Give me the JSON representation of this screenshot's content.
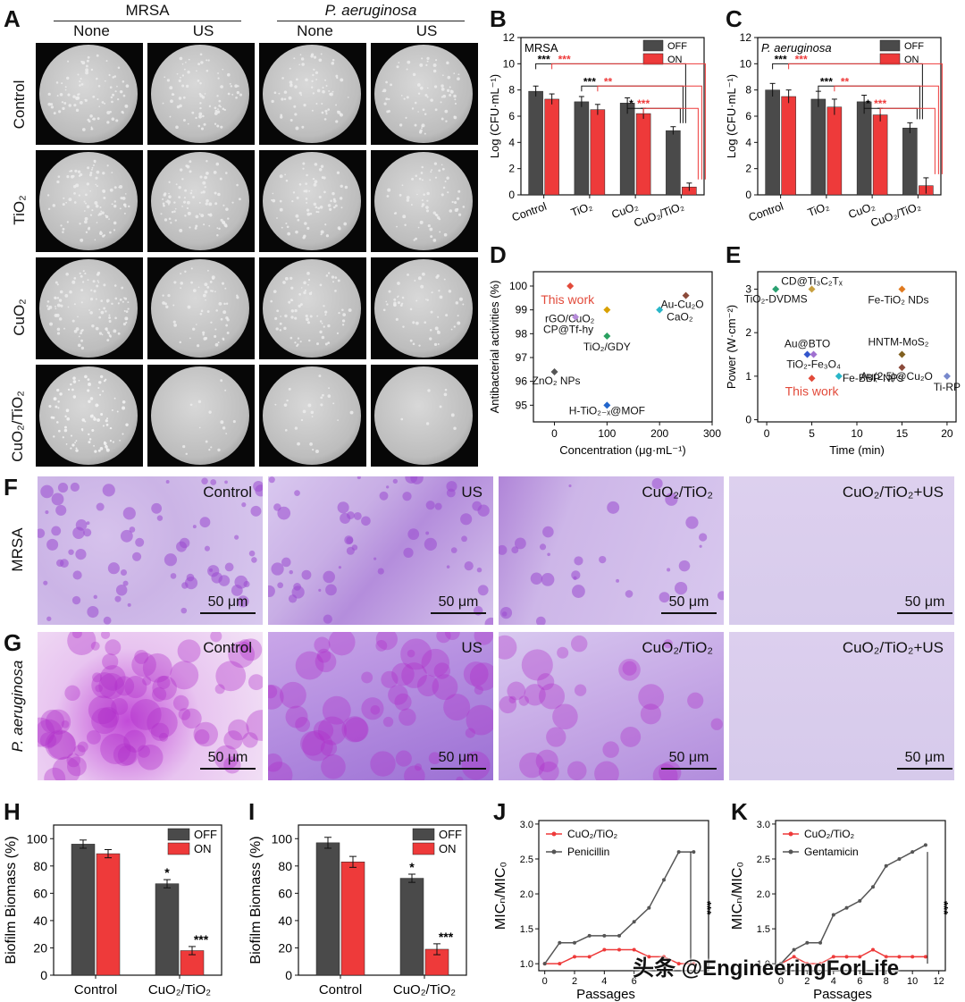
{
  "panelA": {
    "label": "A",
    "group_headers": [
      "MRSA",
      "P. aeruginosa"
    ],
    "col_headers": [
      "None",
      "US",
      "None",
      "US"
    ],
    "row_labels": [
      "Control",
      "TiO₂",
      "CuO₂",
      "CuO₂/TiO₂"
    ],
    "colonies": [
      [
        0.55,
        0.5,
        0.45,
        0.45
      ],
      [
        0.6,
        0.55,
        0.45,
        0.4
      ],
      [
        0.65,
        0.4,
        0.45,
        0.35
      ],
      [
        0.55,
        0.1,
        0.15,
        0.05
      ]
    ]
  },
  "panelB": {
    "label": "B",
    "chart_data": {
      "type": "bar",
      "inset_title": "MRSA",
      "categories": [
        "Control",
        "TiO₂",
        "CuO₂",
        "CuO₂/TiO₂"
      ],
      "series": [
        {
          "name": "OFF",
          "values": [
            7.9,
            7.1,
            7.0,
            4.9
          ]
        },
        {
          "name": "ON",
          "values": [
            7.3,
            6.5,
            6.2,
            0.6
          ]
        }
      ],
      "errors": [
        [
          0.4,
          0.4,
          0.4,
          0.3
        ],
        [
          0.4,
          0.4,
          0.4,
          0.3
        ]
      ],
      "ylabel": "Log (CFU·mL⁻¹)",
      "ylim": [
        0,
        12
      ],
      "yticks": [
        "0",
        "2",
        "4",
        "6",
        "8",
        "10",
        "12"
      ],
      "significance": [
        {
          "from": 0,
          "off": "***",
          "on": "***"
        },
        {
          "from": 1,
          "off": "***",
          "on": "**"
        },
        {
          "from": 2,
          "off": "*",
          "on": "***"
        }
      ],
      "legend": "top-right",
      "colors": {
        "OFF": "#4a4a4a",
        "ON": "#ee3a3a"
      }
    }
  },
  "panelC": {
    "label": "C",
    "chart_data": {
      "type": "bar",
      "inset_title": "P. aeruginosa",
      "categories": [
        "Control",
        "TiO₂",
        "CuO₂",
        "CuO₂/TiO₂"
      ],
      "series": [
        {
          "name": "OFF",
          "values": [
            8.0,
            7.3,
            7.1,
            5.1
          ]
        },
        {
          "name": "ON",
          "values": [
            7.5,
            6.7,
            6.1,
            0.7
          ]
        }
      ],
      "errors": [
        [
          0.5,
          0.6,
          0.5,
          0.4
        ],
        [
          0.5,
          0.6,
          0.5,
          0.6
        ]
      ],
      "ylabel": "Log (CFU·mL⁻¹)",
      "ylim": [
        0,
        12
      ],
      "yticks": [
        "0",
        "2",
        "4",
        "6",
        "8",
        "10",
        "12"
      ],
      "significance": [
        {
          "from": 0,
          "off": "***",
          "on": "***"
        },
        {
          "from": 1,
          "off": "***",
          "on": "**"
        },
        {
          "from": 2,
          "off": "*",
          "on": "***"
        }
      ],
      "legend": "top-right",
      "colors": {
        "OFF": "#4a4a4a",
        "ON": "#ee3a3a"
      }
    }
  },
  "panelD": {
    "label": "D",
    "chart_data": {
      "type": "scatter",
      "xlabel": "Concentration (μg·mL⁻¹)",
      "ylabel": "Antibacterial activities (%)",
      "xlim": [
        -40,
        300
      ],
      "ylim": [
        94.3,
        100.6
      ],
      "xticks": [
        0,
        100,
        200,
        300
      ],
      "yticks": [
        95,
        96,
        97,
        98,
        99,
        100
      ],
      "points": [
        {
          "label": "This work",
          "x": 30,
          "y": 100,
          "color": "#e24a3a",
          "highlight": true
        },
        {
          "label": "Au-Cu₂O",
          "x": 250,
          "y": 99.6,
          "color": "#8b4a3a"
        },
        {
          "label": "rGO/CuO₂",
          "x": 100,
          "y": 99.0,
          "color": "#d8a000"
        },
        {
          "label": "CaO₂",
          "x": 200,
          "y": 99.0,
          "color": "#29b6c8"
        },
        {
          "label": "CP@Tf-hy",
          "x": 40,
          "y": 98.7,
          "color": "#b58ad8"
        },
        {
          "label": "TiO₂/GDY",
          "x": 100,
          "y": 97.9,
          "color": "#2aa060"
        },
        {
          "label": "ZnO₂ NPs",
          "x": 0,
          "y": 96.4,
          "color": "#555555"
        },
        {
          "label": "H-TiO₂₋ₓ@MOF",
          "x": 100,
          "y": 95.0,
          "color": "#2266cc"
        }
      ]
    }
  },
  "panelE": {
    "label": "E",
    "chart_data": {
      "type": "scatter",
      "xlabel": "Time (min)",
      "ylabel": "Power (W·cm⁻²)",
      "xlim": [
        -1,
        21
      ],
      "ylim": [
        -0.05,
        3.4
      ],
      "xticks": [
        0,
        5,
        10,
        15,
        20
      ],
      "yticks": [
        0,
        1,
        2,
        3
      ],
      "points": [
        {
          "label": "CD@Ti₃C₂Tₓ",
          "x": 5,
          "y": 3.0,
          "color": "#c8a040"
        },
        {
          "label": "TiO₂-DVDMS",
          "x": 1,
          "y": 3.0,
          "color": "#2aa070"
        },
        {
          "label": "Fe-TiO₂ NDs",
          "x": 15,
          "y": 3.0,
          "color": "#e07a20"
        },
        {
          "label": "Au@BTO",
          "x": 4.5,
          "y": 1.5,
          "color": "#3355cc"
        },
        {
          "label": "TiO₂-Fe₃O₄",
          "x": 5.2,
          "y": 1.5,
          "color": "#a070d0"
        },
        {
          "label": "HNTM-MoS₂",
          "x": 15,
          "y": 1.5,
          "color": "#806020"
        },
        {
          "label": "This work",
          "x": 5,
          "y": 0.95,
          "color": "#e24a3a",
          "highlight": true
        },
        {
          "label": "Fe-BBP NPs",
          "x": 8,
          "y": 1.0,
          "color": "#29b6c8"
        },
        {
          "label": "Au(2.5)@Cu₂O",
          "x": 15,
          "y": 1.2,
          "color": "#8b4a3a"
        },
        {
          "label": "Ti-RP",
          "x": 20,
          "y": 1.0,
          "color": "#7788cc"
        }
      ]
    }
  },
  "panelF": {
    "label": "F",
    "row_label": "MRSA",
    "tiles": [
      {
        "label": "Control",
        "scale": "50 μm"
      },
      {
        "label": "US",
        "scale": "50 μm"
      },
      {
        "label": "CuO₂/TiO₂",
        "scale": "50 μm"
      },
      {
        "label": "CuO₂/TiO₂+US",
        "scale": "50 μm"
      }
    ]
  },
  "panelG": {
    "label": "G",
    "row_label": "P. aeruginosa",
    "tiles": [
      {
        "label": "Control",
        "scale": "50 μm"
      },
      {
        "label": "US",
        "scale": "50 μm"
      },
      {
        "label": "CuO₂/TiO₂",
        "scale": "50 μm"
      },
      {
        "label": "CuO₂/TiO₂+US",
        "scale": "50 μm"
      }
    ]
  },
  "panelH": {
    "label": "H",
    "chart_data": {
      "type": "bar",
      "categories": [
        "Control",
        "CuO₂/TiO₂"
      ],
      "series": [
        {
          "name": "OFF",
          "values": [
            96,
            67
          ]
        },
        {
          "name": "ON",
          "values": [
            89,
            18
          ]
        }
      ],
      "errors": [
        [
          3,
          3
        ],
        [
          3,
          3
        ]
      ],
      "stars": [
        [
          "",
          "*"
        ],
        [
          "",
          "***"
        ]
      ],
      "ylabel": "Biofilm Biomass (%)",
      "ylim": [
        0,
        110
      ],
      "yticks": [
        "0",
        "20",
        "40",
        "60",
        "80",
        "100"
      ],
      "legend": "top-right",
      "colors": {
        "OFF": "#4a4a4a",
        "ON": "#ee3a3a"
      }
    }
  },
  "panelI": {
    "label": "I",
    "chart_data": {
      "type": "bar",
      "categories": [
        "Control",
        "CuO₂/TiO₂"
      ],
      "series": [
        {
          "name": "OFF",
          "values": [
            97,
            71
          ]
        },
        {
          "name": "ON",
          "values": [
            83,
            19
          ]
        }
      ],
      "errors": [
        [
          4,
          3
        ],
        [
          4,
          4
        ]
      ],
      "stars": [
        [
          "",
          "*"
        ],
        [
          "",
          "***"
        ]
      ],
      "ylabel": "Biofilm Biomass (%)",
      "ylim": [
        0,
        110
      ],
      "yticks": [
        "0",
        "20",
        "40",
        "60",
        "80",
        "100"
      ],
      "legend": "top-right",
      "colors": {
        "OFF": "#4a4a4a",
        "ON": "#ee3a3a"
      }
    }
  },
  "panelJ": {
    "label": "J",
    "chart_data": {
      "type": "line",
      "x": [
        0,
        1,
        2,
        3,
        4,
        5,
        6,
        7,
        8,
        9,
        10
      ],
      "series": [
        {
          "name": "CuO₂/TiO₂",
          "values": [
            1.0,
            1.0,
            1.1,
            1.1,
            1.2,
            1.2,
            1.2,
            1.1,
            1.1,
            1.0,
            1.0
          ],
          "color": "#ee3a3a"
        },
        {
          "name": "Penicillin",
          "values": [
            1.0,
            1.3,
            1.3,
            1.4,
            1.4,
            1.4,
            1.6,
            1.8,
            2.2,
            2.6,
            2.6
          ],
          "color": "#555555"
        }
      ],
      "xlabel": "Passages",
      "ylabel": "MICₙ/MIC₀",
      "xlim": [
        -0.4,
        11
      ],
      "ylim": [
        0.9,
        3.05
      ],
      "xticks": [
        "0",
        "2",
        "4",
        "6"
      ],
      "yticks": [
        "1.0",
        "1.5",
        "2.0",
        "2.5",
        "3.0"
      ],
      "significance": "***",
      "legend": "top-left"
    }
  },
  "panelK": {
    "label": "K",
    "chart_data": {
      "type": "line",
      "x": [
        0,
        1,
        2,
        3,
        4,
        5,
        6,
        7,
        8,
        9,
        10,
        11
      ],
      "series": [
        {
          "name": "CuO₂/TiO₂",
          "values": [
            1.0,
            1.1,
            1.0,
            1.0,
            1.1,
            1.1,
            1.1,
            1.2,
            1.1,
            1.1,
            1.1,
            1.1
          ],
          "color": "#ee3a3a"
        },
        {
          "name": "Gentamicin",
          "values": [
            1.0,
            1.2,
            1.3,
            1.3,
            1.7,
            1.8,
            1.9,
            2.1,
            2.4,
            2.5,
            2.6,
            2.7
          ],
          "color": "#555555"
        }
      ],
      "xlabel": "Passages",
      "ylabel": "MICₙ/MIC₀",
      "xlim": [
        -0.4,
        12.5
      ],
      "ylim": [
        0.9,
        3.05
      ],
      "xticks": [
        "0",
        "2",
        "4",
        "6",
        "8",
        "10",
        "12"
      ],
      "yticks": [
        "1.0",
        "1.5",
        "2.0",
        "2.5",
        "3.0"
      ],
      "significance": "***",
      "legend": "top-left"
    }
  },
  "watermark": "头条 @EngineeringForLife"
}
